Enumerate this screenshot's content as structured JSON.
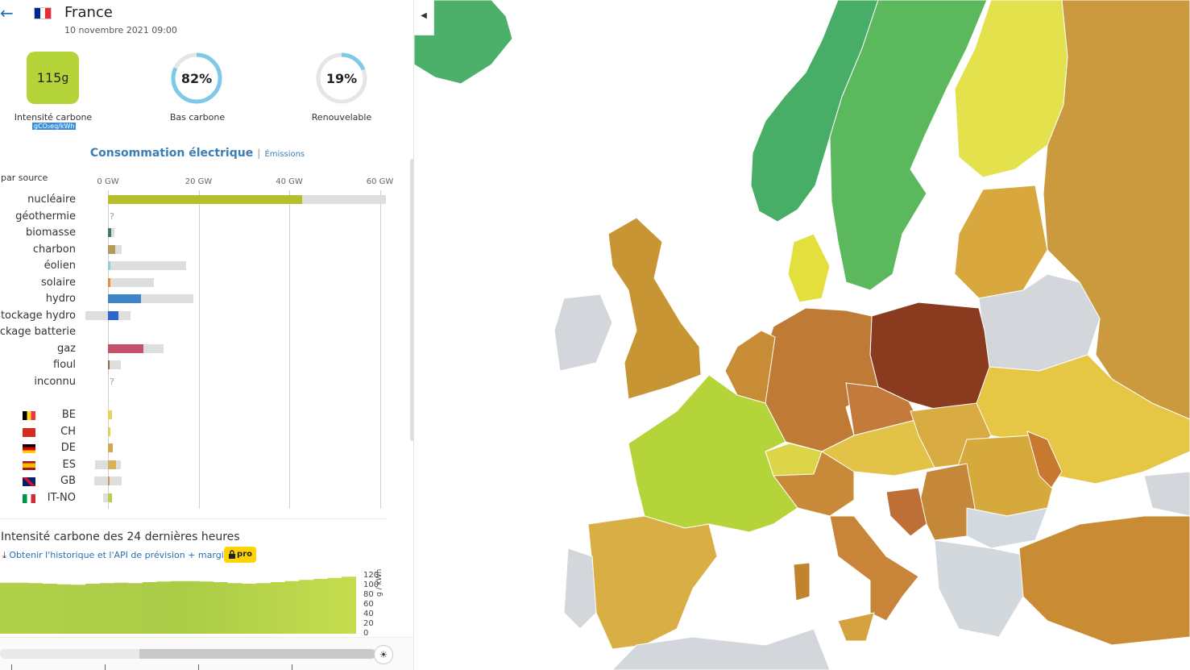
{
  "header": {
    "back_icon": "arrow-left-icon",
    "country": "France",
    "datetime": "10 novembre 2021 09:00"
  },
  "stats": {
    "carbon_intensity": {
      "value": "115",
      "unit": "g",
      "label": "Intensité carbone",
      "unit_label": "gCO₂eq/kWh",
      "color": "#b4d43a"
    },
    "low_carbon": {
      "value": "82%",
      "fraction": 0.82,
      "label": "Bas carbone"
    },
    "renewable": {
      "value": "19%",
      "fraction": 0.19,
      "label": "Renouvelable"
    }
  },
  "tabs": {
    "active": "Consommation électrique",
    "separator": "|",
    "other": "Émissions"
  },
  "breakdown": {
    "header": "par source",
    "axis_ticks": [
      "0 GW",
      "20 GW",
      "40 GW",
      "60 GW"
    ],
    "axis_max_gw": 60,
    "sources": [
      {
        "name": "nucléaire",
        "value_gw": 42.8,
        "capacity_gw": 61.4,
        "color": "#b5bf2c"
      },
      {
        "name": "géothermie",
        "value_gw": null,
        "capacity_gw": null,
        "unknown": "?"
      },
      {
        "name": "biomasse",
        "value_gw": 0.7,
        "capacity_gw": 1.4,
        "color": "#3a7a68"
      },
      {
        "name": "charbon",
        "value_gw": 1.6,
        "capacity_gw": 3.0,
        "color": "#b59b5a"
      },
      {
        "name": "éolien",
        "value_gw": 0.6,
        "capacity_gw": 17.2,
        "color": "#8ccfd6"
      },
      {
        "name": "solaire",
        "value_gw": 0.5,
        "capacity_gw": 10.2,
        "color": "#f08a2c"
      },
      {
        "name": "hydro",
        "value_gw": 7.3,
        "capacity_gw": 18.8,
        "color": "#3f84c7"
      },
      {
        "name": "stockage hydro",
        "value_gw": 2.3,
        "capacity_gw": 4.9,
        "neg_capacity_gw": -5.0,
        "color": "#2d65c8"
      },
      {
        "name": "stockage batterie",
        "value_gw": null,
        "capacity_gw": null
      },
      {
        "name": "gaz",
        "value_gw": 7.8,
        "capacity_gw": 12.2,
        "color": "#c4526a"
      },
      {
        "name": "fioul",
        "value_gw": 0.3,
        "capacity_gw": 2.8,
        "color": "#8a6a4a"
      },
      {
        "name": "inconnu",
        "value_gw": null,
        "capacity_gw": null,
        "unknown": "?"
      }
    ],
    "exchanges": [
      {
        "code": "BE",
        "flag": [
          "#000000",
          "#fdda24",
          "#ef3340"
        ],
        "value_gw": 0.9,
        "color": "#e8d25a"
      },
      {
        "code": "CH",
        "flag": [
          "#d52b1e"
        ],
        "value_gw": 0.6,
        "color": "#d9d35a"
      },
      {
        "code": "DE",
        "flag": [
          "#000000",
          "#dd0000",
          "#ffce00"
        ],
        "value_gw": 1.0,
        "color": "#d4a850"
      },
      {
        "code": "ES",
        "flag": [
          "#aa151b",
          "#f1bf00",
          "#aa151b"
        ],
        "value_gw": 1.8,
        "neg_gw": -2.9,
        "capacity_gw": 2.8,
        "color": "#d8b15a"
      },
      {
        "code": "GB",
        "flag": [
          "#012169",
          "#c8102e",
          "#ffffff"
        ],
        "value_gw": 0.3,
        "neg_gw": -3.0,
        "capacity_gw": 3.0,
        "color": "#c79a5a"
      },
      {
        "code": "IT-NO",
        "flag": [
          "#009246",
          "#ffffff",
          "#ce2b37"
        ],
        "value_gw": 0.9,
        "neg_gw": -1.0,
        "color": "#b7cf4a"
      }
    ]
  },
  "history": {
    "title": "Intensité carbone des 24 dernières heures",
    "download_icon": "download-icon",
    "link": "Obtenir l'historique et l'API de prévision + marginal",
    "pro_icon": "lock-icon",
    "pro": "pro",
    "y_ticks": [
      "120",
      "100",
      "80",
      "60",
      "40",
      "20",
      "0"
    ],
    "y_unit": "g / kWh",
    "y_max": 120,
    "values": [
      95,
      95,
      94,
      93,
      92,
      91,
      93,
      94,
      95,
      94,
      96,
      97,
      98,
      98,
      97,
      96,
      94,
      93,
      94,
      96,
      98,
      100,
      102,
      104,
      106
    ]
  },
  "timeline": {
    "thumb_icon": "sun-icon",
    "position": 1.0
  },
  "map": {
    "collapse_icon": "caret-left-icon"
  }
}
